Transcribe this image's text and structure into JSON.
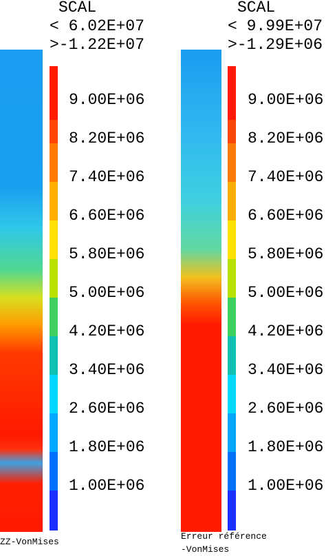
{
  "panels": [
    {
      "header": {
        "title": "SCAL",
        "max": "< 6.02E+07",
        "min": ">-1.22E+07"
      },
      "scale": [
        "9.00E+06",
        "8.20E+06",
        "7.40E+06",
        "6.60E+06",
        "5.80E+06",
        "5.00E+06",
        "4.20E+06",
        "3.40E+06",
        "2.60E+06",
        "1.80E+06",
        "1.00E+06"
      ],
      "caption": [
        "ZZ-VonMises"
      ]
    },
    {
      "header": {
        "title": "SCAL",
        "max": "< 9.99E+07",
        "min": ">-1.29E+06"
      },
      "scale": [
        "9.00E+06",
        "8.20E+06",
        "7.40E+06",
        "6.60E+06",
        "5.80E+06",
        "5.00E+06",
        "4.20E+06",
        "3.40E+06",
        "2.60E+06",
        "1.80E+06",
        "1.00E+06"
      ],
      "caption": [
        "Erreur référence",
        "-VonMises"
      ]
    }
  ]
}
